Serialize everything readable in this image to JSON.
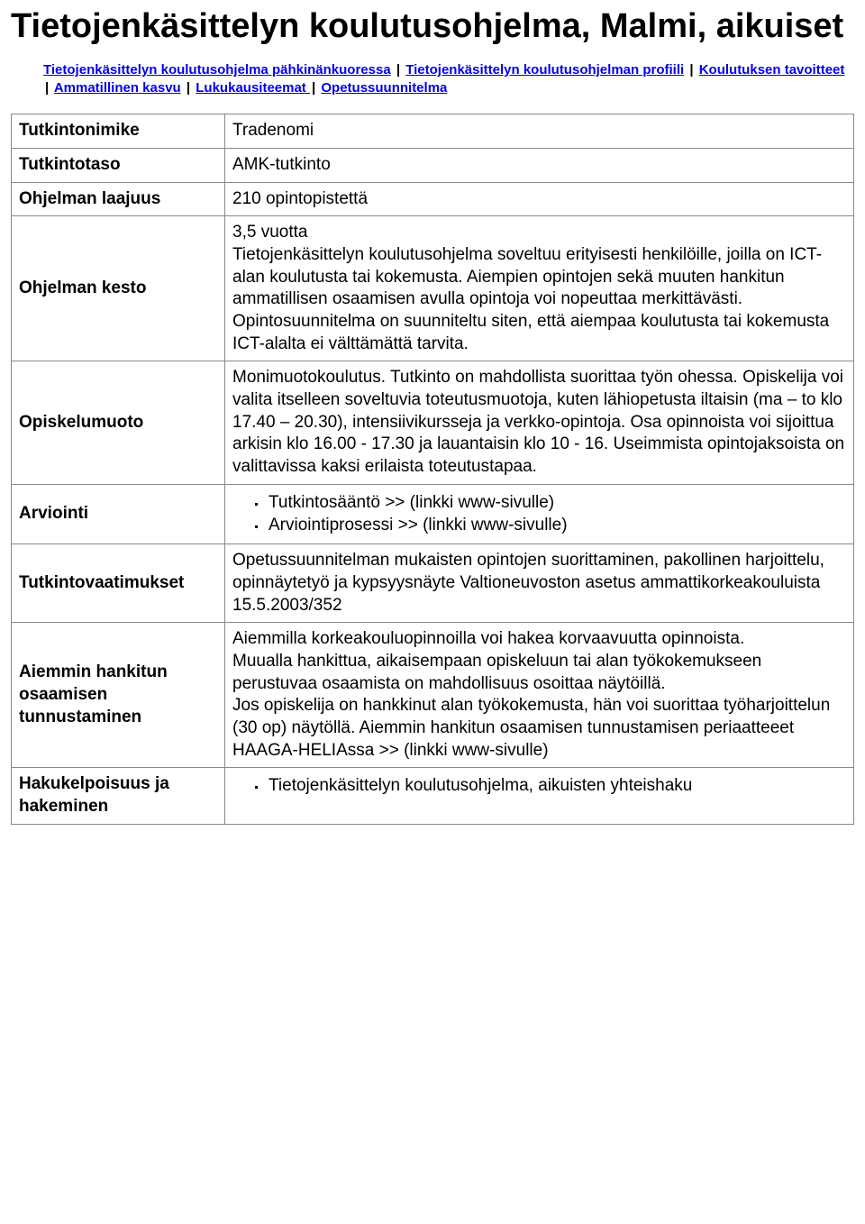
{
  "title": "Tietojenkäsittelyn koulutusohjelma, Malmi, aikuiset",
  "nav": {
    "link1": "Tietojenkäsittelyn koulutusohjelma pähkinänkuoressa",
    "link2": "Tietojenkäsittelyn koulutusohjelman profiili",
    "link3": "Koulutuksen tavoitteet",
    "link4": "Ammatillinen kasvu",
    "link5": "Lukukausiteemat ",
    "link6": "Opetussuunnitelma",
    "sep": "|"
  },
  "rows": {
    "tutkintonimike": {
      "label": "Tutkintonimike",
      "value": "Tradenomi"
    },
    "tutkintotaso": {
      "label": "Tutkintotaso",
      "value": "AMK-tutkinto"
    },
    "laajuus": {
      "label": "Ohjelman laajuus",
      "value": "210 opintopistettä"
    },
    "kesto": {
      "label": "Ohjelman kesto",
      "value": "3,5 vuotta\nTietojenkäsittelyn koulutusohjelma soveltuu erityisesti henkilöille, joilla on ICT-alan koulutusta tai kokemusta. Aiempien opintojen sekä muuten hankitun ammatillisen osaamisen avulla opintoja voi nopeuttaa merkittävästi. Opintosuunnitelma on suunniteltu siten, että aiempaa koulutusta tai kokemusta ICT-alalta ei välttämättä tarvita."
    },
    "opiskelumuoto": {
      "label": "Opiskelumuoto",
      "value": "Monimuotokoulutus. Tutkinto on mahdollista suorittaa työn ohessa. Opiskelija voi valita itselleen soveltuvia toteutusmuotoja, kuten lähiopetusta iltaisin (ma – to klo 17.40 – 20.30), intensiivikursseja ja verkko-opintoja. Osa opinnoista voi sijoittua arkisin klo 16.00 - 17.30 ja lauantaisin klo 10 - 16. Useimmista opintojaksoista on valittavissa kaksi erilaista toteutustapaa."
    },
    "arviointi": {
      "label": "Arviointi",
      "item1": "Tutkintosääntö >> (linkki www-sivulle)",
      "item2": "Arviointiprosessi >> (linkki www-sivulle)"
    },
    "vaatimukset": {
      "label": "Tutkintovaatimukset",
      "value": "Opetussuunnitelman mukaisten opintojen suorittaminen, pakollinen harjoittelu, opinnäytetyö ja kypsyysnäyte Valtioneuvoston asetus ammattikorkeakouluista 15.5.2003/352"
    },
    "tunnustaminen": {
      "label": "Aiemmin hankitun osaamisen tunnustaminen",
      "value": "Aiemmilla korkeakouluopinnoilla voi hakea korvaavuutta opinnoista.\nMuualla hankittua, aikaisempaan opiskeluun tai alan työkokemukseen perustuvaa osaamista on mahdollisuus osoittaa näytöillä.\nJos opiskelija on hankkinut alan työkokemusta, hän voi suorittaa työharjoittelun (30 op) näytöllä. Aiemmin hankitun osaamisen tunnustamisen periaatteeet HAAGA-HELIAssa >> (linkki www-sivulle)"
    },
    "hakeminen": {
      "label": "Hakukelpoisuus ja hakeminen",
      "item1": "Tietojenkäsittelyn koulutusohjelma, aikuisten yhteishaku"
    }
  },
  "colors": {
    "link": "#0000ee",
    "border": "#888888",
    "text": "#000000",
    "background": "#ffffff"
  },
  "typography": {
    "heading_fontsize": 38,
    "body_fontsize": 19,
    "nav_fontsize": 15,
    "font_family": "Arial"
  }
}
